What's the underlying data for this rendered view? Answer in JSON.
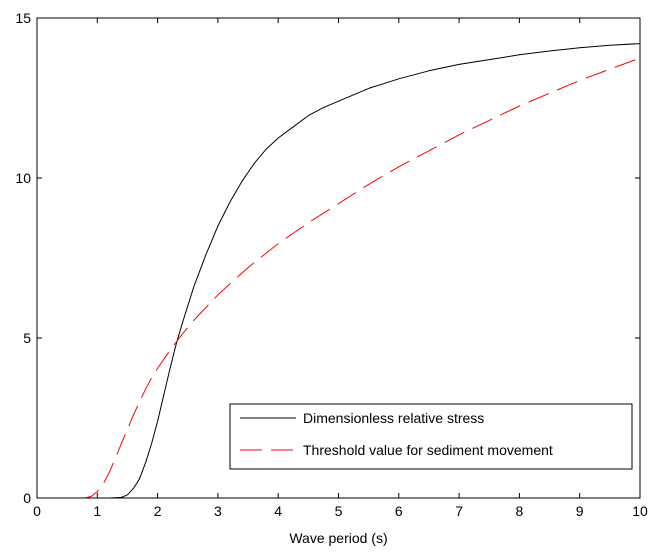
{
  "chart_data": {
    "type": "line",
    "title": "",
    "xlabel": "Wave period (s)",
    "ylabel": "",
    "xlim": [
      0,
      10
    ],
    "ylim": [
      0,
      15
    ],
    "xticks": [
      0,
      1,
      2,
      3,
      4,
      5,
      6,
      7,
      8,
      9,
      10
    ],
    "yticks": [
      0,
      5,
      10,
      15
    ],
    "grid": false,
    "legend_position": "bottom-right",
    "series": [
      {
        "name": "Dimensionless relative stress",
        "color": "#000000",
        "style": "solid",
        "x": [
          0.8,
          1.0,
          1.2,
          1.4,
          1.5,
          1.6,
          1.7,
          1.8,
          1.9,
          2.0,
          2.1,
          2.2,
          2.3,
          2.4,
          2.5,
          2.6,
          2.7,
          2.8,
          2.9,
          3.0,
          3.2,
          3.4,
          3.6,
          3.8,
          4.0,
          4.25,
          4.5,
          4.75,
          5.0,
          5.5,
          6.0,
          6.5,
          7.0,
          7.5,
          8.0,
          8.5,
          9.0,
          9.5,
          10.0
        ],
        "y": [
          0.0,
          0.0,
          0.0,
          0.02,
          0.1,
          0.3,
          0.6,
          1.1,
          1.7,
          2.4,
          3.2,
          4.0,
          4.75,
          5.4,
          6.0,
          6.6,
          7.1,
          7.6,
          8.05,
          8.5,
          9.25,
          9.9,
          10.45,
          10.9,
          11.25,
          11.6,
          11.95,
          12.2,
          12.4,
          12.8,
          13.1,
          13.35,
          13.55,
          13.7,
          13.85,
          13.97,
          14.07,
          14.15,
          14.2
        ]
      },
      {
        "name": "Threshold value for sediment movement",
        "color": "#ff0000",
        "style": "dashed",
        "x": [
          0.7,
          0.8,
          0.9,
          1.0,
          1.1,
          1.2,
          1.3,
          1.4,
          1.5,
          1.6,
          1.7,
          1.8,
          1.9,
          2.0,
          2.2,
          2.4,
          2.6,
          2.8,
          3.0,
          3.5,
          4.0,
          4.5,
          5.0,
          5.5,
          6.0,
          6.5,
          7.0,
          7.5,
          8.0,
          8.5,
          9.0,
          9.5,
          10.0
        ],
        "y": [
          0.0,
          0.0,
          0.05,
          0.2,
          0.45,
          0.8,
          1.25,
          1.7,
          2.15,
          2.6,
          3.0,
          3.4,
          3.75,
          4.05,
          4.6,
          5.1,
          5.55,
          5.95,
          6.35,
          7.2,
          7.95,
          8.6,
          9.2,
          9.8,
          10.35,
          10.85,
          11.35,
          11.8,
          12.25,
          12.65,
          13.05,
          13.4,
          13.75
        ]
      }
    ]
  }
}
